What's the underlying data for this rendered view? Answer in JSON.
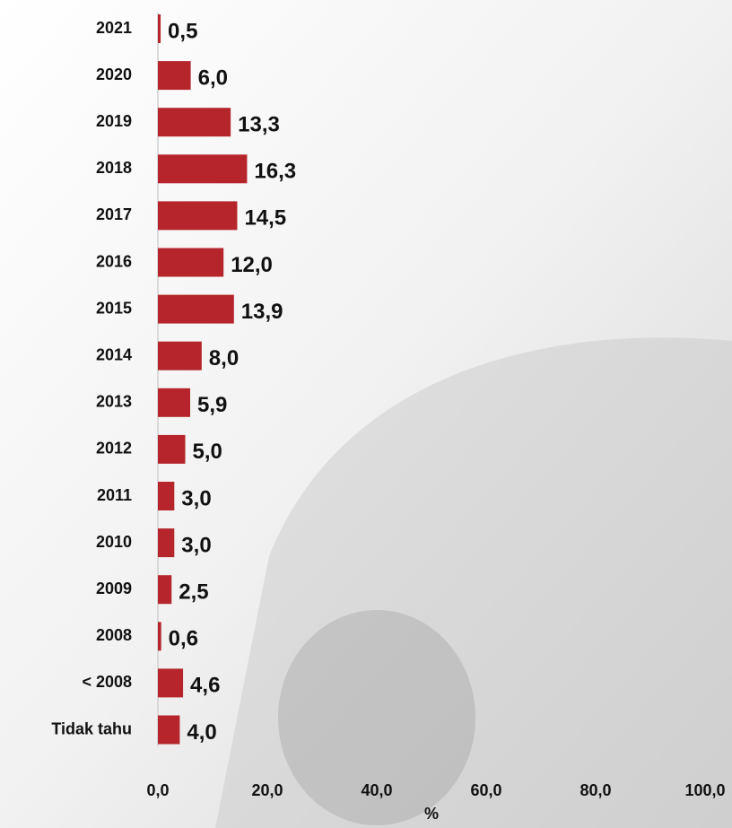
{
  "chart_data": {
    "type": "bar",
    "orientation": "horizontal",
    "x_label": "%",
    "categories": [
      "2021",
      "2020",
      "2019",
      "2018",
      "2017",
      "2016",
      "2015",
      "2014",
      "2013",
      "2012",
      "2011",
      "2010",
      "2009",
      "2008",
      "< 2008",
      "Tidak tahu"
    ],
    "values": [
      0.5,
      6.0,
      13.3,
      16.3,
      14.5,
      12.0,
      13.9,
      8.0,
      5.9,
      5.0,
      3.0,
      3.0,
      2.5,
      0.6,
      4.6,
      4.0
    ],
    "value_labels": [
      "0,5",
      "6,0",
      "13,3",
      "16,3",
      "14,5",
      "12,0",
      "13,9",
      "8,0",
      "5,9",
      "5,0",
      "3,0",
      "3,0",
      "2,5",
      "0,6",
      "4,6",
      "4,0"
    ],
    "color": "#b5252b",
    "xlim": [
      0,
      100
    ],
    "xticks": [
      {
        "value": 0,
        "label": "0,0"
      },
      {
        "value": 20,
        "label": "20,0"
      },
      {
        "value": 40,
        "label": "40,0"
      },
      {
        "value": 60,
        "label": "60,0"
      },
      {
        "value": 80,
        "label": "80,0"
      },
      {
        "value": 100,
        "label": "100,0"
      }
    ]
  }
}
